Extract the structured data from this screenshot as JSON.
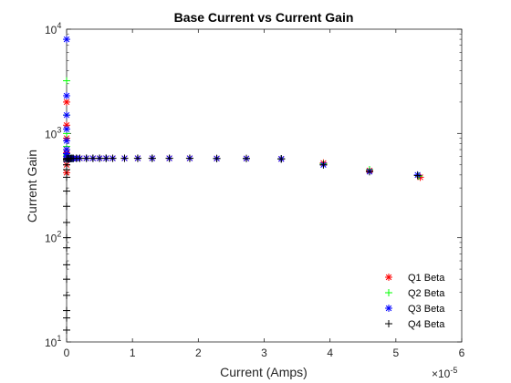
{
  "chart_data": {
    "type": "scatter",
    "title": "Base Current vs Current Gain",
    "xlabel": "Current (Amps)",
    "ylabel": "Current Gain",
    "x_exponent_label": "×10",
    "x_exponent_power": "-5",
    "x_scale_factor": 1e-05,
    "xlim": [
      0,
      6
    ],
    "ylim": [
      10,
      10000
    ],
    "yscale": "log",
    "xticks": [
      "0",
      "1",
      "2",
      "3",
      "4",
      "5",
      "6"
    ],
    "yticks": [
      {
        "base": "10",
        "exp": "1",
        "value": 10
      },
      {
        "base": "10",
        "exp": "2",
        "value": 100
      },
      {
        "base": "10",
        "exp": "3",
        "value": 1000
      },
      {
        "base": "10",
        "exp": "4",
        "value": 10000
      }
    ],
    "grid": false,
    "legend_position": "bottom-right",
    "series": [
      {
        "name": "Q1 Beta",
        "marker": "asterisk",
        "color": "#ff0000",
        "x": [
          0,
          0,
          0,
          0,
          0,
          0,
          0,
          0,
          0.02,
          0.04,
          0.06,
          0.08,
          0.1,
          0.15,
          0.2,
          0.3,
          0.4,
          0.5,
          0.6,
          0.7,
          0.88,
          1.08,
          1.3,
          1.56,
          1.87,
          2.28,
          2.73,
          3.26,
          3.9,
          4.6,
          5.37
        ],
        "y": [
          2000,
          1200,
          900,
          700,
          650,
          500,
          420,
          560,
          570,
          570,
          575,
          575,
          575,
          578,
          578,
          578,
          578,
          578,
          578,
          578,
          578,
          578,
          578,
          578,
          578,
          575,
          575,
          570,
          520,
          440,
          380
        ]
      },
      {
        "name": "Q2 Beta",
        "marker": "plus",
        "color": "#00ff00",
        "x": [
          0,
          0,
          0,
          0,
          0,
          0,
          0,
          0.02,
          0.04,
          0.06,
          0.08,
          0.1,
          0.15,
          0.2,
          0.3,
          0.4,
          0.5,
          0.6,
          0.7,
          0.88,
          1.08,
          1.3,
          1.56,
          1.87,
          2.28,
          2.73,
          3.26,
          3.9,
          4.6,
          5.35
        ],
        "y": [
          3200,
          1500,
          1000,
          750,
          620,
          450,
          560,
          570,
          572,
          575,
          575,
          575,
          578,
          578,
          578,
          578,
          578,
          578,
          578,
          578,
          578,
          578,
          578,
          578,
          575,
          575,
          570,
          510,
          450,
          390
        ]
      },
      {
        "name": "Q3 Beta",
        "marker": "asterisk",
        "color": "#0000ff",
        "x": [
          0,
          0,
          0,
          0,
          0,
          0,
          0,
          0,
          0,
          0.02,
          0.04,
          0.06,
          0.08,
          0.1,
          0.15,
          0.2,
          0.3,
          0.4,
          0.5,
          0.6,
          0.7,
          0.88,
          1.08,
          1.3,
          1.56,
          1.87,
          2.28,
          2.73,
          3.26,
          3.9,
          4.6,
          5.33
        ],
        "y": [
          8000,
          2300,
          1500,
          1100,
          850,
          700,
          640,
          600,
          560,
          570,
          572,
          575,
          575,
          575,
          578,
          578,
          578,
          578,
          578,
          578,
          578,
          578,
          578,
          578,
          578,
          578,
          575,
          575,
          570,
          500,
          430,
          400
        ]
      },
      {
        "name": "Q4 Beta",
        "marker": "plus",
        "color": "#000000",
        "x": [
          0,
          0,
          0,
          0,
          0,
          0,
          0,
          0,
          0,
          0,
          0,
          0,
          0,
          0,
          0,
          0,
          0,
          0,
          0.02,
          0.04,
          0.06,
          0.08,
          0.1,
          0.15,
          0.2,
          0.3,
          0.4,
          0.5,
          0.6,
          0.7,
          0.88,
          1.08,
          1.3,
          1.56,
          1.87,
          2.28,
          2.73,
          3.26,
          3.9,
          4.6,
          5.33
        ],
        "y": [
          13,
          17,
          20,
          28,
          40,
          55,
          80,
          100,
          140,
          200,
          280,
          380,
          450,
          500,
          540,
          560,
          570,
          575,
          575,
          575,
          575,
          578,
          578,
          578,
          578,
          578,
          578,
          578,
          578,
          578,
          578,
          578,
          578,
          578,
          578,
          575,
          575,
          570,
          500,
          430,
          395
        ]
      }
    ]
  }
}
